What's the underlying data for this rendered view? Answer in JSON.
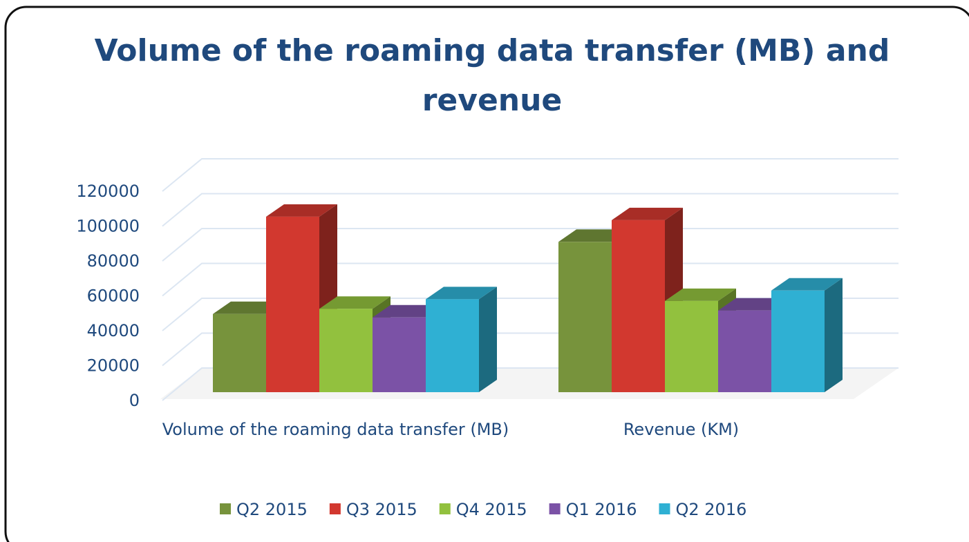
{
  "chart_data": {
    "type": "bar3d",
    "title": "Volume of the roaming data transfer (MB) and revenue",
    "categories": [
      "Volume of the roaming data transfer (MB)",
      "Revenue  (KM)"
    ],
    "series": [
      {
        "name": "Q2 2015",
        "color": "#77933c",
        "values": [
          45000,
          86500
        ]
      },
      {
        "name": "Q3 2015",
        "color": "#d2382f",
        "values": [
          101000,
          99000
        ]
      },
      {
        "name": "Q4 2015",
        "color": "#92c13e",
        "values": [
          48000,
          52500
        ]
      },
      {
        "name": "Q1 2016",
        "color": "#7b52a6",
        "values": [
          43000,
          47000
        ]
      },
      {
        "name": "Q2 2016",
        "color": "#2fb0d3",
        "values": [
          53500,
          58500
        ]
      }
    ],
    "ylim": [
      0,
      120000
    ],
    "yticks": [
      0,
      20000,
      40000,
      60000,
      80000,
      100000,
      120000
    ],
    "grid": true,
    "legend": "bottom"
  }
}
